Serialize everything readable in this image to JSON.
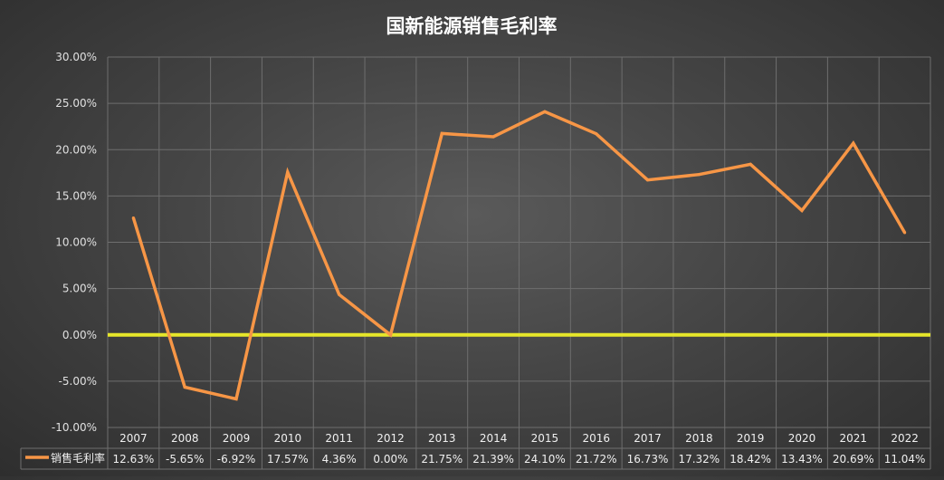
{
  "chart_data": {
    "type": "line",
    "title": "国新能源销售毛利率",
    "xlabel": "",
    "ylabel": "",
    "categories": [
      "2007",
      "2008",
      "2009",
      "2010",
      "2011",
      "2012",
      "2013",
      "2014",
      "2015",
      "2016",
      "2017",
      "2018",
      "2019",
      "2020",
      "2021",
      "2022"
    ],
    "series": [
      {
        "name": "销售毛利率",
        "values": [
          12.63,
          -5.65,
          -6.92,
          17.57,
          4.36,
          0.0,
          21.75,
          21.39,
          24.1,
          21.72,
          16.73,
          17.32,
          18.42,
          13.43,
          20.69,
          11.04
        ],
        "labels": [
          "12.63%",
          "-5.65%",
          "-6.92%",
          "17.57%",
          "4.36%",
          "0.00%",
          "21.75%",
          "21.39%",
          "24.10%",
          "21.72%",
          "16.73%",
          "17.32%",
          "18.42%",
          "13.43%",
          "20.69%",
          "11.04%"
        ],
        "color": "#F79646"
      }
    ],
    "ylim": [
      -10,
      30
    ],
    "yticks": [
      "-10.00%",
      "-5.00%",
      "0.00%",
      "5.00%",
      "10.00%",
      "15.00%",
      "20.00%",
      "25.00%",
      "30.00%"
    ],
    "zero_line_color": "#E6E62A",
    "grid": true,
    "legend": "data-table-left",
    "data_table": true
  }
}
